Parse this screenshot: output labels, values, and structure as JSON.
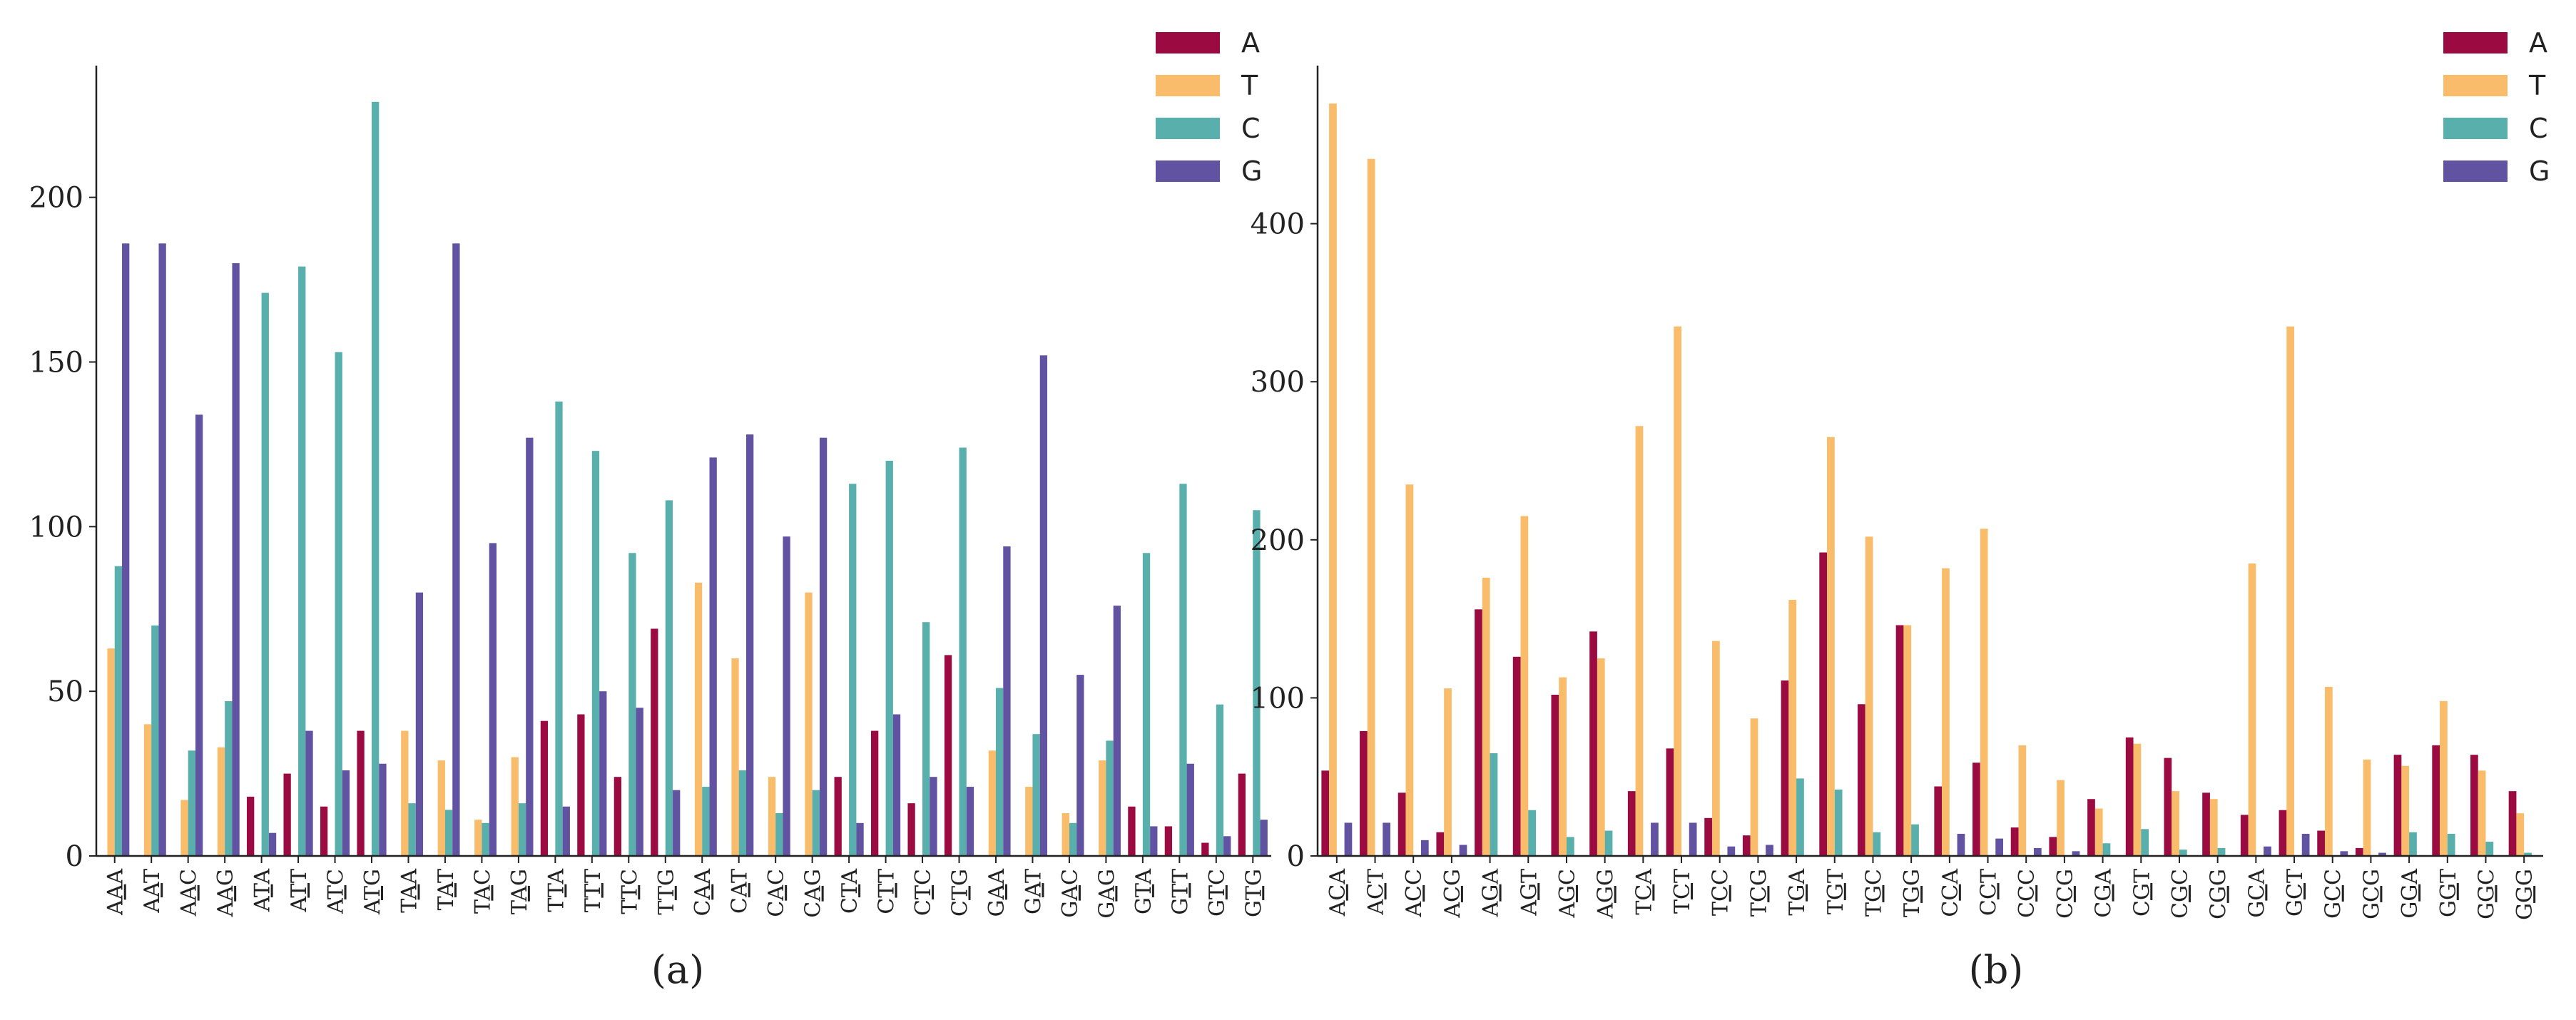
{
  "colors": {
    "A": "#9B0A40",
    "T": "#F8BC6A",
    "C": "#58AFAB",
    "G": "#6252A2",
    "axis": "#222222"
  },
  "chart_data": [
    {
      "type": "bar",
      "caption": "(a)",
      "categories": [
        "AAA",
        "AAT",
        "AAC",
        "AAG",
        "ATA",
        "ATT",
        "ATC",
        "ATG",
        "TAA",
        "TAT",
        "TAC",
        "TAG",
        "TTA",
        "TTT",
        "TTC",
        "TTG",
        "CAA",
        "CAT",
        "CAC",
        "CAG",
        "CTA",
        "CTT",
        "CTC",
        "CTG",
        "GAA",
        "GAT",
        "GAC",
        "GAG",
        "GTA",
        "GTT",
        "GTC",
        "GTG"
      ],
      "underline_index": [
        1,
        1,
        1,
        1,
        1,
        1,
        1,
        1,
        1,
        1,
        1,
        1,
        1,
        1,
        1,
        1,
        1,
        1,
        1,
        1,
        1,
        1,
        1,
        1,
        1,
        1,
        1,
        1,
        1,
        1,
        1,
        1
      ],
      "series": [
        {
          "name": "A",
          "values": [
            0,
            0,
            0,
            0,
            18,
            25,
            15,
            38,
            0,
            0,
            0,
            0,
            41,
            43,
            24,
            69,
            0,
            0,
            0,
            0,
            24,
            38,
            16,
            61,
            0,
            0,
            0,
            0,
            15,
            9,
            4,
            25
          ]
        },
        {
          "name": "T",
          "values": [
            63,
            40,
            17,
            33,
            0,
            0,
            0,
            0,
            38,
            29,
            11,
            30,
            0,
            0,
            0,
            0,
            83,
            60,
            24,
            80,
            0,
            0,
            0,
            0,
            32,
            21,
            13,
            29,
            0,
            0,
            0,
            0
          ]
        },
        {
          "name": "C",
          "values": [
            88,
            70,
            32,
            47,
            171,
            179,
            153,
            229,
            16,
            14,
            10,
            16,
            138,
            123,
            92,
            108,
            21,
            26,
            13,
            20,
            113,
            120,
            71,
            124,
            51,
            37,
            10,
            35,
            92,
            113,
            46,
            105
          ]
        },
        {
          "name": "G",
          "values": [
            186,
            186,
            134,
            180,
            7,
            38,
            26,
            28,
            80,
            186,
            95,
            127,
            15,
            50,
            45,
            20,
            121,
            128,
            97,
            127,
            10,
            43,
            24,
            21,
            94,
            152,
            55,
            76,
            9,
            28,
            6,
            11
          ]
        }
      ],
      "ylim": [
        0,
        240
      ],
      "yticks": [
        "0",
        "50",
        "100",
        "150",
        "200"
      ],
      "ytick_values": [
        0,
        50,
        100,
        150,
        200
      ],
      "legend": [
        "A",
        "T",
        "C",
        "G"
      ],
      "legend_position": "top-right"
    },
    {
      "type": "bar",
      "caption": "(b)",
      "categories": [
        "ACA",
        "ACT",
        "ACC",
        "ACG",
        "AGA",
        "AGT",
        "AGC",
        "AGG",
        "TCA",
        "TCT",
        "TCC",
        "TCG",
        "TGA",
        "TGT",
        "TGC",
        "TGG",
        "CCA",
        "CCT",
        "CCC",
        "CCG",
        "CGA",
        "CGT",
        "CGC",
        "CGG",
        "GCA",
        "GCT",
        "GCC",
        "GCG",
        "GGA",
        "GGT",
        "GGC",
        "GGG"
      ],
      "underline_index": [
        1,
        1,
        1,
        1,
        1,
        1,
        1,
        1,
        1,
        1,
        1,
        1,
        1,
        1,
        1,
        1,
        1,
        1,
        1,
        1,
        1,
        1,
        1,
        1,
        1,
        1,
        1,
        1,
        1,
        1,
        1,
        1
      ],
      "series": [
        {
          "name": "A",
          "values": [
            54,
            79,
            40,
            15,
            156,
            126,
            102,
            142,
            41,
            68,
            24,
            13,
            111,
            192,
            96,
            146,
            44,
            59,
            18,
            12,
            36,
            75,
            62,
            40,
            26,
            29,
            16,
            5,
            64,
            70,
            64,
            41
          ]
        },
        {
          "name": "T",
          "values": [
            476,
            441,
            235,
            106,
            176,
            215,
            113,
            125,
            272,
            335,
            136,
            87,
            162,
            265,
            202,
            146,
            182,
            207,
            70,
            48,
            30,
            71,
            41,
            36,
            185,
            335,
            107,
            61,
            57,
            98,
            54,
            27
          ]
        },
        {
          "name": "C",
          "values": [
            0,
            0,
            0,
            0,
            65,
            29,
            12,
            16,
            0,
            0,
            0,
            0,
            49,
            42,
            15,
            20,
            0,
            0,
            0,
            0,
            8,
            17,
            4,
            5,
            0,
            0,
            0,
            0,
            15,
            14,
            9,
            2
          ]
        },
        {
          "name": "G",
          "values": [
            21,
            21,
            10,
            7,
            0,
            0,
            0,
            0,
            21,
            21,
            6,
            7,
            0,
            0,
            0,
            0,
            14,
            11,
            5,
            3,
            0,
            0,
            0,
            0,
            6,
            14,
            3,
            2,
            0,
            0,
            0,
            0
          ]
        }
      ],
      "ylim": [
        0,
        500
      ],
      "yticks": [
        "0",
        "100",
        "200",
        "300",
        "400"
      ],
      "ytick_values": [
        0,
        100,
        200,
        300,
        400
      ],
      "legend": [
        "A",
        "T",
        "C",
        "G"
      ],
      "legend_position": "top-right"
    }
  ]
}
